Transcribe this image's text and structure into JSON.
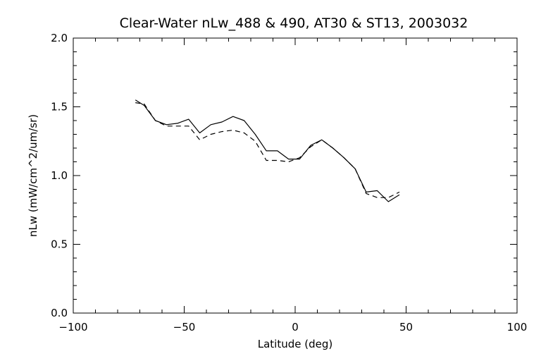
{
  "chart_data": {
    "type": "line",
    "title": "Clear-Water nLw_488 & 490, AT30 & ST13, 2003032",
    "xlabel": "Latitude (deg)",
    "ylabel": "nLw (mW/cm^2/um/sr)",
    "xlim": [
      -100,
      100
    ],
    "ylim": [
      0.0,
      2.0
    ],
    "x_ticks": [
      -100,
      -50,
      0,
      50,
      100
    ],
    "x_tick_labels": [
      "−100",
      "−50",
      "0",
      "50",
      "100"
    ],
    "y_ticks": [
      0.0,
      0.5,
      1.0,
      1.5,
      2.0
    ],
    "y_tick_labels": [
      "0.0",
      "0.5",
      "1.0",
      "1.5",
      "2.0"
    ],
    "x_minor_step": 10,
    "y_minor_step": 0.1,
    "grid": false,
    "legend": "none",
    "series": [
      {
        "style": "solid",
        "color": "#000000",
        "x": [
          -72,
          -68,
          -63,
          -58,
          -53,
          -48,
          -43,
          -38,
          -33,
          -28,
          -23,
          -18,
          -13,
          -8,
          -3,
          2,
          7,
          12,
          17,
          22,
          27,
          32,
          37,
          42,
          47
        ],
        "y": [
          1.55,
          1.51,
          1.4,
          1.37,
          1.38,
          1.41,
          1.31,
          1.37,
          1.39,
          1.43,
          1.4,
          1.3,
          1.18,
          1.18,
          1.12,
          1.12,
          1.22,
          1.26,
          1.2,
          1.13,
          1.05,
          0.88,
          0.89,
          0.81,
          0.86
        ]
      },
      {
        "style": "dashed",
        "color": "#000000",
        "x": [
          -72,
          -68,
          -63,
          -58,
          -53,
          -48,
          -43,
          -38,
          -33,
          -28,
          -23,
          -18,
          -13,
          -8,
          -3,
          2,
          7,
          12,
          17,
          22,
          27,
          32,
          37,
          42,
          47
        ],
        "y": [
          1.53,
          1.52,
          1.4,
          1.36,
          1.36,
          1.36,
          1.26,
          1.3,
          1.32,
          1.33,
          1.31,
          1.25,
          1.11,
          1.11,
          1.1,
          1.13,
          1.21,
          1.26,
          1.2,
          1.13,
          1.05,
          0.87,
          0.84,
          0.84,
          0.88
        ]
      }
    ]
  }
}
